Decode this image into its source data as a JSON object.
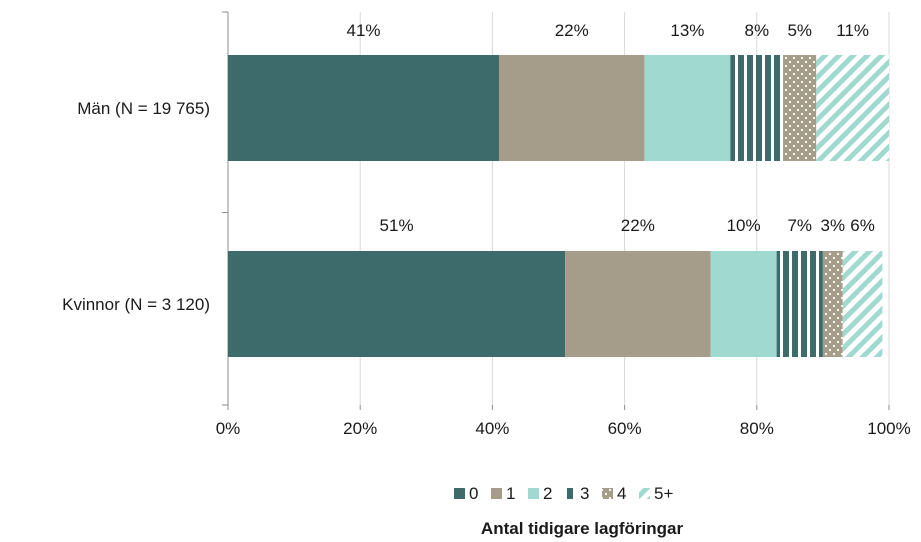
{
  "chart_data": {
    "type": "bar",
    "orientation": "horizontal",
    "stacked": "percent",
    "categories": [
      "Män (N = 19 765)",
      "Kvinnor (N = 3 120)"
    ],
    "series": [
      {
        "name": "0",
        "values": [
          41,
          51
        ],
        "labels": [
          "41%",
          "51%"
        ],
        "color": "#3d6b6b",
        "pattern": "solid"
      },
      {
        "name": "1",
        "values": [
          22,
          22
        ],
        "labels": [
          "22%",
          "22%"
        ],
        "color": "#a59d8a",
        "pattern": "solid"
      },
      {
        "name": "2",
        "values": [
          13,
          10
        ],
        "labels": [
          "13%",
          "10%"
        ],
        "color": "#9fd9cf",
        "pattern": "solid"
      },
      {
        "name": "3",
        "values": [
          8,
          7
        ],
        "labels": [
          "8%",
          "7%"
        ],
        "color": "#3d6b6b",
        "pattern": "vertical-stripes"
      },
      {
        "name": "4",
        "values": [
          5,
          3
        ],
        "labels": [
          "5%",
          "3%"
        ],
        "color": "#a59d8a",
        "pattern": "dots"
      },
      {
        "name": "5+",
        "values": [
          11,
          6
        ],
        "labels": [
          "11%",
          "6%"
        ],
        "color": "#9fd9cf",
        "pattern": "diagonal-stripes"
      }
    ],
    "xlim": [
      0,
      100
    ],
    "xticks": [
      "0%",
      "20%",
      "40%",
      "60%",
      "80%",
      "100%"
    ],
    "grid": true,
    "legend_position": "bottom",
    "legend_title": "Antal tidigare lagföringar"
  }
}
